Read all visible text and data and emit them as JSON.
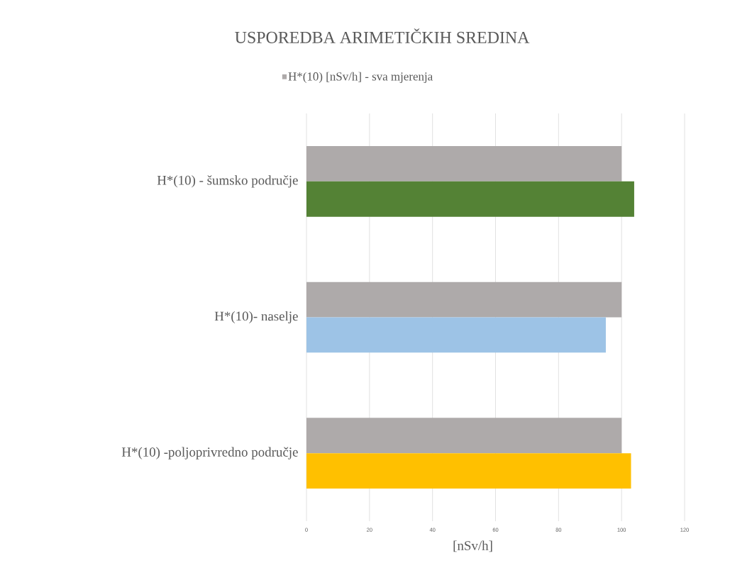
{
  "chart_data": {
    "type": "bar",
    "orientation": "horizontal",
    "title": "USPOREDBA ARIMETIČKIH SREDINA",
    "xlabel": "[nSv/h]",
    "categories": [
      "H*(10) - šumsko područje",
      "H*(10)- naselje",
      "H*(10)  -poljoprivredno područje"
    ],
    "series": [
      {
        "name": "H*(10)  [nSv/h]  - sva mjerenja",
        "color": "#aeaaaa",
        "values": [
          100,
          100,
          100
        ]
      },
      {
        "colors": [
          "#548235",
          "#9dc3e6",
          "#ffc000"
        ],
        "values": [
          104,
          95,
          103
        ]
      }
    ],
    "xlim": [
      0,
      120
    ],
    "xticks": [
      0,
      20,
      40,
      60,
      80,
      100,
      120
    ],
    "grid": "x",
    "legend": "top"
  }
}
